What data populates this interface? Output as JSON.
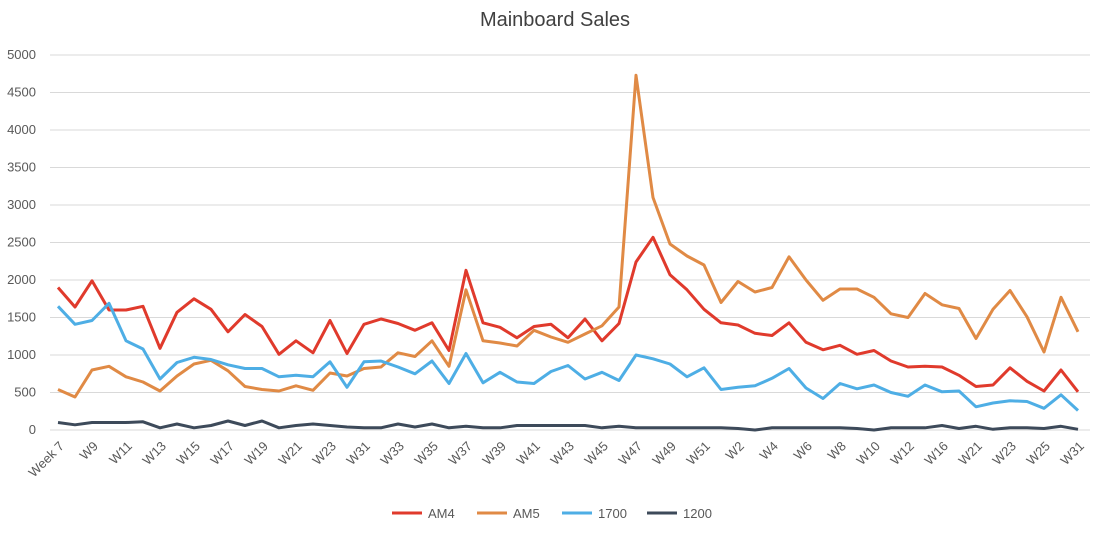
{
  "chart_data": {
    "type": "line",
    "title": "Mainboard Sales",
    "categories": [
      "Week 7",
      null,
      "W9",
      null,
      "W11",
      null,
      "W13",
      null,
      "W15",
      null,
      "W17",
      null,
      "W19",
      null,
      "W21",
      null,
      "W23",
      null,
      "W31",
      null,
      "W33",
      null,
      "W35",
      null,
      "W37",
      null,
      "W39",
      null,
      "W41",
      null,
      "W43",
      null,
      "W45",
      null,
      "W47",
      null,
      "W49",
      null,
      "W51",
      null,
      "W2",
      null,
      "W4",
      null,
      "W6",
      null,
      "W8",
      null,
      "W10",
      null,
      "W12",
      null,
      "W16",
      null,
      "W21",
      null,
      "W23",
      null,
      "W25",
      null,
      "W31"
    ],
    "series": [
      {
        "name": "AM4",
        "color": "#e03a2c",
        "values": [
          1900,
          1640,
          1990,
          1600,
          1600,
          1650,
          1090,
          1570,
          1750,
          1610,
          1310,
          1540,
          1380,
          1010,
          1190,
          1030,
          1460,
          1020,
          1410,
          1480,
          1420,
          1330,
          1430,
          1060,
          2130,
          1430,
          1370,
          1230,
          1380,
          1410,
          1230,
          1480,
          1190,
          1420,
          2240,
          2570,
          2070,
          1870,
          1610,
          1430,
          1400,
          1290,
          1260,
          1430,
          1170,
          1070,
          1130,
          1010,
          1060,
          920,
          840,
          850,
          840,
          730,
          580,
          600,
          830,
          650,
          520,
          800,
          510
        ]
      },
      {
        "name": "AM5",
        "color": "#e08a45",
        "values": [
          540,
          440,
          800,
          850,
          710,
          640,
          520,
          720,
          880,
          930,
          790,
          580,
          540,
          520,
          590,
          530,
          760,
          720,
          820,
          840,
          1030,
          980,
          1190,
          850,
          1870,
          1190,
          1160,
          1120,
          1330,
          1240,
          1170,
          1280,
          1390,
          1640,
          4730,
          3100,
          2480,
          2320,
          2200,
          1700,
          1980,
          1840,
          1900,
          2310,
          2000,
          1730,
          1880,
          1880,
          1770,
          1550,
          1500,
          1820,
          1670,
          1620,
          1220,
          1610,
          1860,
          1510,
          1040,
          1770,
          1310
        ]
      },
      {
        "name": "1700",
        "color": "#4eaee5",
        "values": [
          1650,
          1410,
          1460,
          1690,
          1190,
          1080,
          680,
          900,
          970,
          940,
          870,
          820,
          820,
          710,
          730,
          710,
          910,
          570,
          910,
          920,
          840,
          750,
          920,
          620,
          1020,
          630,
          770,
          640,
          620,
          780,
          860,
          680,
          770,
          660,
          1000,
          950,
          880,
          710,
          830,
          540,
          570,
          590,
          690,
          820,
          560,
          420,
          620,
          550,
          600,
          500,
          450,
          600,
          510,
          520,
          310,
          360,
          390,
          380,
          290,
          470,
          260
        ]
      },
      {
        "name": "1200",
        "color": "#3d4a5a",
        "values": [
          100,
          70,
          100,
          100,
          100,
          110,
          30,
          80,
          30,
          60,
          120,
          60,
          120,
          30,
          60,
          80,
          60,
          40,
          30,
          30,
          80,
          40,
          80,
          30,
          50,
          30,
          30,
          60,
          60,
          60,
          60,
          60,
          30,
          50,
          30,
          30,
          30,
          30,
          30,
          30,
          20,
          0,
          30,
          30,
          30,
          30,
          30,
          20,
          0,
          30,
          30,
          30,
          60,
          20,
          50,
          10,
          30,
          30,
          20,
          50,
          10
        ]
      }
    ],
    "ylim": [
      0,
      5000
    ],
    "yticks": [
      0,
      500,
      1000,
      1500,
      2000,
      2500,
      3000,
      3500,
      4000,
      4500,
      5000
    ],
    "grid": true,
    "legend": "bottom"
  }
}
